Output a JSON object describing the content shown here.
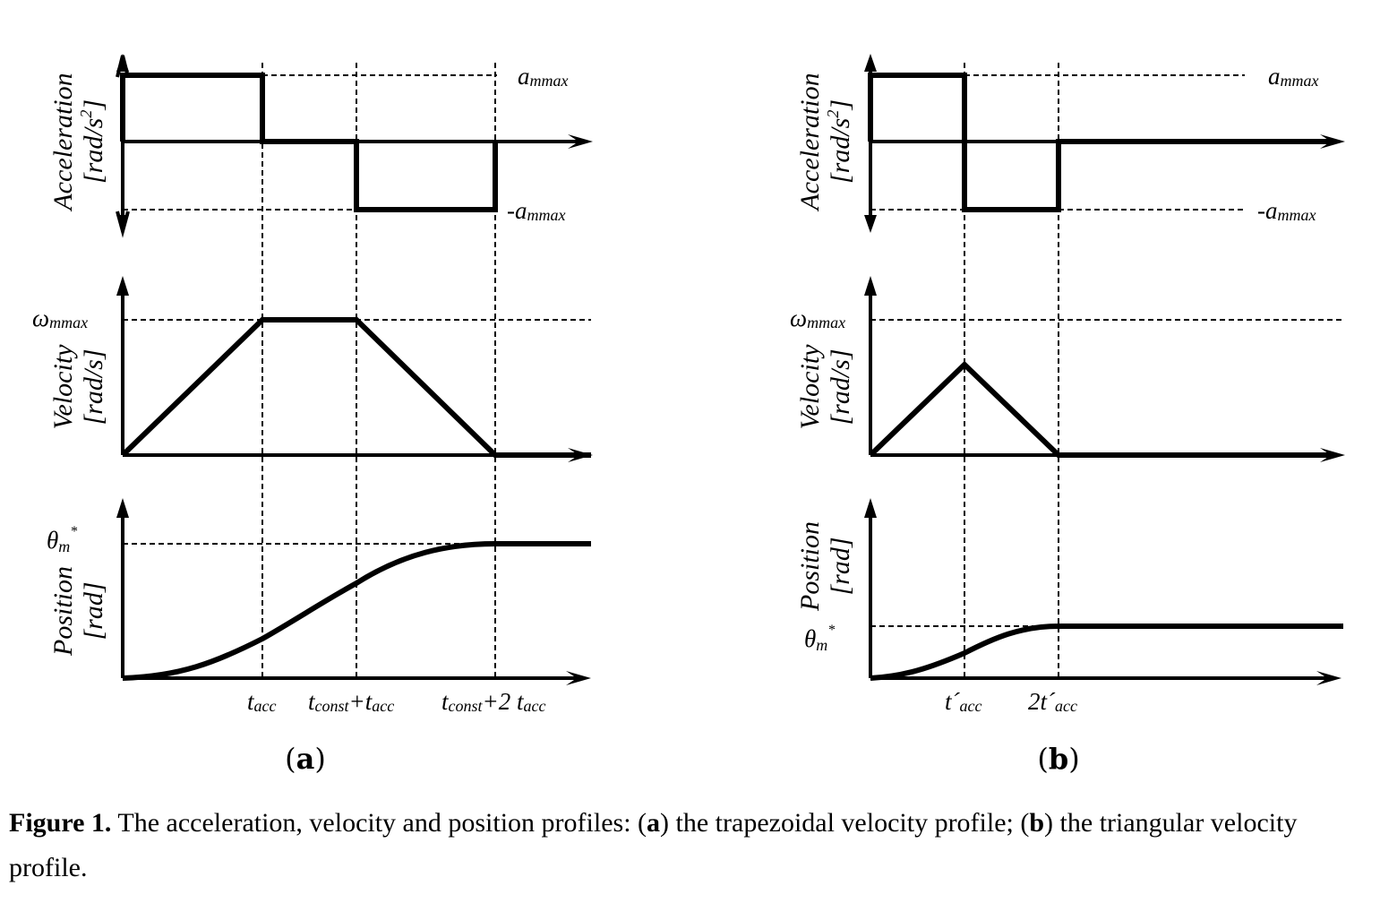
{
  "panel_a": {
    "tag": "a",
    "y_labels": {
      "acceleration": "Acceleration",
      "acceleration_unit": "[rad/s",
      "acceleration_unit_sup": "2",
      "acceleration_unit_close": "]",
      "velocity": "Velocity",
      "velocity_unit": "[rad/s]",
      "position": "Position",
      "position_unit": "[rad]"
    },
    "markers": {
      "a_max_base": "a",
      "a_max_sub": "mmax",
      "neg_a_max_prefix": "-a",
      "neg_a_max_sub": "mmax",
      "w_max_base": "ω",
      "w_max_sub": "mmax",
      "theta_base": "θ",
      "theta_sub": "m",
      "theta_sup": "*"
    },
    "x_ticks": [
      {
        "base": "t",
        "sub": "acc"
      },
      {
        "base": "t",
        "sub": "const",
        "plus": "+t",
        "sub2": "acc"
      },
      {
        "base": "t",
        "sub": "const",
        "plus": "+2 t",
        "sub2": "acc"
      }
    ]
  },
  "panel_b": {
    "tag": "b",
    "y_labels": {
      "acceleration": "Acceleration",
      "acceleration_unit": "[rad/s",
      "acceleration_unit_sup": "2",
      "acceleration_unit_close": "]",
      "velocity": "Velocity",
      "velocity_unit": "[rad/s]",
      "position": "Position",
      "position_unit": "[rad]"
    },
    "markers": {
      "a_max_base": "a",
      "a_max_sub": "mmax",
      "neg_a_max_prefix": "-a",
      "neg_a_max_sub": "mmax",
      "w_max_base": "ω",
      "w_max_sub": "mmax",
      "theta_base": "θ",
      "theta_sub": "m",
      "theta_sup": "*"
    },
    "x_ticks": [
      {
        "base": "t´",
        "sub": "acc"
      },
      {
        "base": "2t´",
        "sub": "acc"
      }
    ]
  },
  "caption": {
    "label": "Figure 1.",
    "text_1": " The acceleration, velocity and position profiles: (",
    "a": "a",
    "text_2": ") the trapezoidal velocity profile; (",
    "b": "b",
    "text_3": ") the triangular velocity profile."
  }
}
